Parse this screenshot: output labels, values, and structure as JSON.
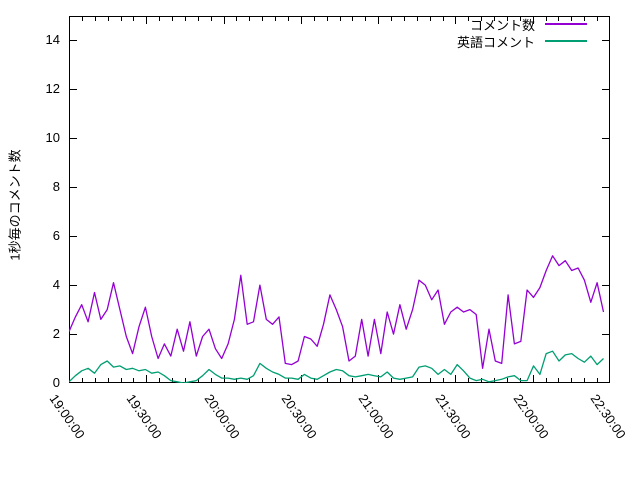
{
  "chart_data": {
    "type": "line",
    "title": "",
    "xlabel": "",
    "ylabel": "1秒毎のコメント数",
    "grid": false,
    "legend_position": "top-right-inside",
    "ylim": [
      0,
      15
    ],
    "y_ticks": [
      "0",
      "2",
      "4",
      "6",
      "8",
      "10",
      "12",
      "14"
    ],
    "x_axis_total_minutes": 210,
    "x_major_step_min": 30,
    "x_minor_step_min": 5,
    "x_tick_labels": [
      "19:00:00",
      "19:30:00",
      "20:00:00",
      "20:30:00",
      "21:00:00",
      "21:30:00",
      "22:00:00",
      "22:30:00"
    ],
    "axis_color": "#000000",
    "series": [
      {
        "name": "コメント数",
        "color": "#9400d3",
        "x_start_min": 0,
        "x_step_min": 2.47,
        "values": [
          2.1,
          2.7,
          3.2,
          2.5,
          3.7,
          2.6,
          3.0,
          4.1,
          3.0,
          1.9,
          1.2,
          2.3,
          3.1,
          1.9,
          1.0,
          1.6,
          1.1,
          2.2,
          1.3,
          2.5,
          1.1,
          1.9,
          2.2,
          1.4,
          1.0,
          1.6,
          2.6,
          4.4,
          2.4,
          2.5,
          4.0,
          2.6,
          2.4,
          2.7,
          0.8,
          0.75,
          0.9,
          1.9,
          1.8,
          1.5,
          2.4,
          3.6,
          3.0,
          2.3,
          0.9,
          1.1,
          2.6,
          1.1,
          2.6,
          1.2,
          2.9,
          2.0,
          3.2,
          2.2,
          3.0,
          4.2,
          4.0,
          3.4,
          3.8,
          2.4,
          2.9,
          3.1,
          2.9,
          3.0,
          2.8,
          0.6,
          2.2,
          0.9,
          0.8,
          3.6,
          1.6,
          1.7,
          3.8,
          3.5,
          3.9,
          4.6,
          5.2,
          4.8,
          5.0,
          4.6,
          4.7,
          4.2,
          3.3,
          4.1,
          2.9
        ]
      },
      {
        "name": "英語コメント",
        "color": "#009e73",
        "x_start_min": 0,
        "x_step_min": 2.47,
        "values": [
          0.05,
          0.3,
          0.5,
          0.6,
          0.4,
          0.75,
          0.9,
          0.65,
          0.7,
          0.55,
          0.6,
          0.5,
          0.55,
          0.4,
          0.45,
          0.3,
          0.1,
          0.05,
          0.0,
          0.05,
          0.1,
          0.3,
          0.55,
          0.35,
          0.2,
          0.2,
          0.15,
          0.2,
          0.15,
          0.3,
          0.8,
          0.6,
          0.45,
          0.35,
          0.2,
          0.2,
          0.15,
          0.35,
          0.2,
          0.15,
          0.3,
          0.45,
          0.55,
          0.5,
          0.3,
          0.25,
          0.3,
          0.35,
          0.3,
          0.25,
          0.45,
          0.2,
          0.15,
          0.2,
          0.25,
          0.65,
          0.7,
          0.6,
          0.35,
          0.55,
          0.35,
          0.75,
          0.5,
          0.2,
          0.1,
          0.15,
          0.05,
          0.1,
          0.15,
          0.25,
          0.3,
          0.1,
          0.1,
          0.7,
          0.35,
          1.2,
          1.3,
          0.9,
          1.15,
          1.2,
          1.0,
          0.85,
          1.1,
          0.75,
          1.0
        ]
      }
    ]
  }
}
